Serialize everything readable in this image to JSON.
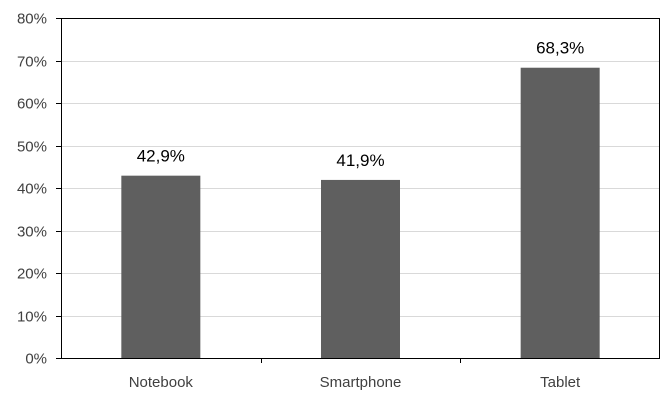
{
  "chart_data": {
    "type": "bar",
    "categories": [
      "Notebook",
      "Smartphone",
      "Tablet"
    ],
    "values": [
      42.9,
      41.9,
      68.3
    ],
    "data_labels": [
      "42,9%",
      "41,9%",
      "68,3%"
    ],
    "y_ticks": [
      0,
      10,
      20,
      30,
      40,
      50,
      60,
      70,
      80
    ],
    "y_tick_labels": [
      "0%",
      "10%",
      "20%",
      "30%",
      "40%",
      "50%",
      "60%",
      "70%",
      "80%"
    ],
    "ylim": [
      0,
      80
    ],
    "grid": true,
    "legend": "none",
    "bar_color": "#5f5f5f",
    "grid_color": "#d9d9d9",
    "axis_color": "#000000",
    "title": "",
    "xlabel": "",
    "ylabel": ""
  }
}
